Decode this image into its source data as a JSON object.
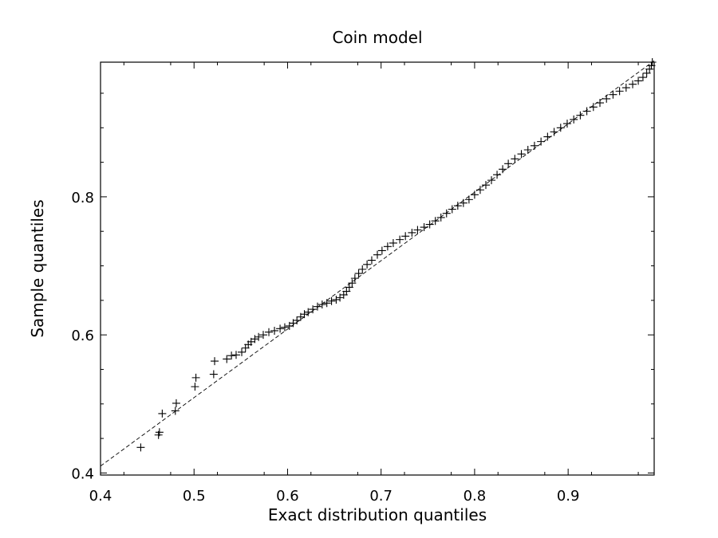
{
  "chart_data": {
    "type": "scatter",
    "title": "Coin model",
    "xlabel": "Exact distribution quantiles",
    "ylabel": "Sample quantiles",
    "xlim": [
      0.4,
      0.992
    ],
    "ylim": [
      0.397,
      0.995
    ],
    "x_ticks": [
      0.4,
      0.5,
      0.6,
      0.7,
      0.8,
      0.9
    ],
    "x_tick_labels": [
      "0.4",
      "0.5",
      "0.6",
      "0.7",
      "0.8",
      "0.9"
    ],
    "y_ticks": [
      0.4,
      0.6,
      0.8
    ],
    "y_tick_labels": [
      "0.4",
      "0.6",
      "0.8"
    ],
    "grid": false,
    "marker": "plus",
    "marker_color": "#000000",
    "reference_line": {
      "style": "dashed",
      "x": [
        0.4,
        0.992
      ],
      "y": [
        0.41,
        0.997
      ]
    },
    "points": [
      [
        0.443,
        0.437
      ],
      [
        0.462,
        0.455
      ],
      [
        0.463,
        0.459
      ],
      [
        0.466,
        0.486
      ],
      [
        0.48,
        0.49
      ],
      [
        0.481,
        0.501
      ],
      [
        0.501,
        0.525
      ],
      [
        0.502,
        0.538
      ],
      [
        0.521,
        0.543
      ],
      [
        0.522,
        0.562
      ],
      [
        0.535,
        0.565
      ],
      [
        0.54,
        0.57
      ],
      [
        0.545,
        0.571
      ],
      [
        0.551,
        0.575
      ],
      [
        0.555,
        0.581
      ],
      [
        0.558,
        0.586
      ],
      [
        0.561,
        0.59
      ],
      [
        0.565,
        0.594
      ],
      [
        0.569,
        0.597
      ],
      [
        0.574,
        0.6
      ],
      [
        0.58,
        0.604
      ],
      [
        0.586,
        0.606
      ],
      [
        0.592,
        0.609
      ],
      [
        0.597,
        0.611
      ],
      [
        0.602,
        0.613
      ],
      [
        0.606,
        0.617
      ],
      [
        0.61,
        0.621
      ],
      [
        0.614,
        0.626
      ],
      [
        0.618,
        0.63
      ],
      [
        0.622,
        0.633
      ],
      [
        0.627,
        0.637
      ],
      [
        0.632,
        0.641
      ],
      [
        0.637,
        0.644
      ],
      [
        0.642,
        0.646
      ],
      [
        0.647,
        0.649
      ],
      [
        0.652,
        0.651
      ],
      [
        0.656,
        0.654
      ],
      [
        0.66,
        0.658
      ],
      [
        0.663,
        0.663
      ],
      [
        0.666,
        0.669
      ],
      [
        0.669,
        0.675
      ],
      [
        0.672,
        0.682
      ],
      [
        0.676,
        0.689
      ],
      [
        0.68,
        0.695
      ],
      [
        0.685,
        0.702
      ],
      [
        0.69,
        0.708
      ],
      [
        0.696,
        0.716
      ],
      [
        0.701,
        0.722
      ],
      [
        0.707,
        0.728
      ],
      [
        0.713,
        0.733
      ],
      [
        0.72,
        0.738
      ],
      [
        0.726,
        0.743
      ],
      [
        0.733,
        0.748
      ],
      [
        0.739,
        0.752
      ],
      [
        0.746,
        0.756
      ],
      [
        0.752,
        0.76
      ],
      [
        0.758,
        0.765
      ],
      [
        0.764,
        0.77
      ],
      [
        0.77,
        0.776
      ],
      [
        0.776,
        0.782
      ],
      [
        0.782,
        0.787
      ],
      [
        0.788,
        0.791
      ],
      [
        0.794,
        0.796
      ],
      [
        0.8,
        0.803
      ],
      [
        0.806,
        0.81
      ],
      [
        0.812,
        0.817
      ],
      [
        0.818,
        0.824
      ],
      [
        0.824,
        0.832
      ],
      [
        0.83,
        0.84
      ],
      [
        0.836,
        0.848
      ],
      [
        0.843,
        0.855
      ],
      [
        0.85,
        0.862
      ],
      [
        0.857,
        0.868
      ],
      [
        0.864,
        0.874
      ],
      [
        0.871,
        0.88
      ],
      [
        0.878,
        0.887
      ],
      [
        0.885,
        0.894
      ],
      [
        0.892,
        0.9
      ],
      [
        0.899,
        0.906
      ],
      [
        0.906,
        0.912
      ],
      [
        0.913,
        0.918
      ],
      [
        0.92,
        0.924
      ],
      [
        0.927,
        0.93
      ],
      [
        0.934,
        0.936
      ],
      [
        0.941,
        0.942
      ],
      [
        0.948,
        0.948
      ],
      [
        0.955,
        0.953
      ],
      [
        0.962,
        0.958
      ],
      [
        0.969,
        0.963
      ],
      [
        0.975,
        0.968
      ],
      [
        0.98,
        0.973
      ],
      [
        0.984,
        0.979
      ],
      [
        0.987,
        0.985
      ],
      [
        0.989,
        0.99
      ],
      [
        0.99,
        0.995
      ]
    ]
  }
}
